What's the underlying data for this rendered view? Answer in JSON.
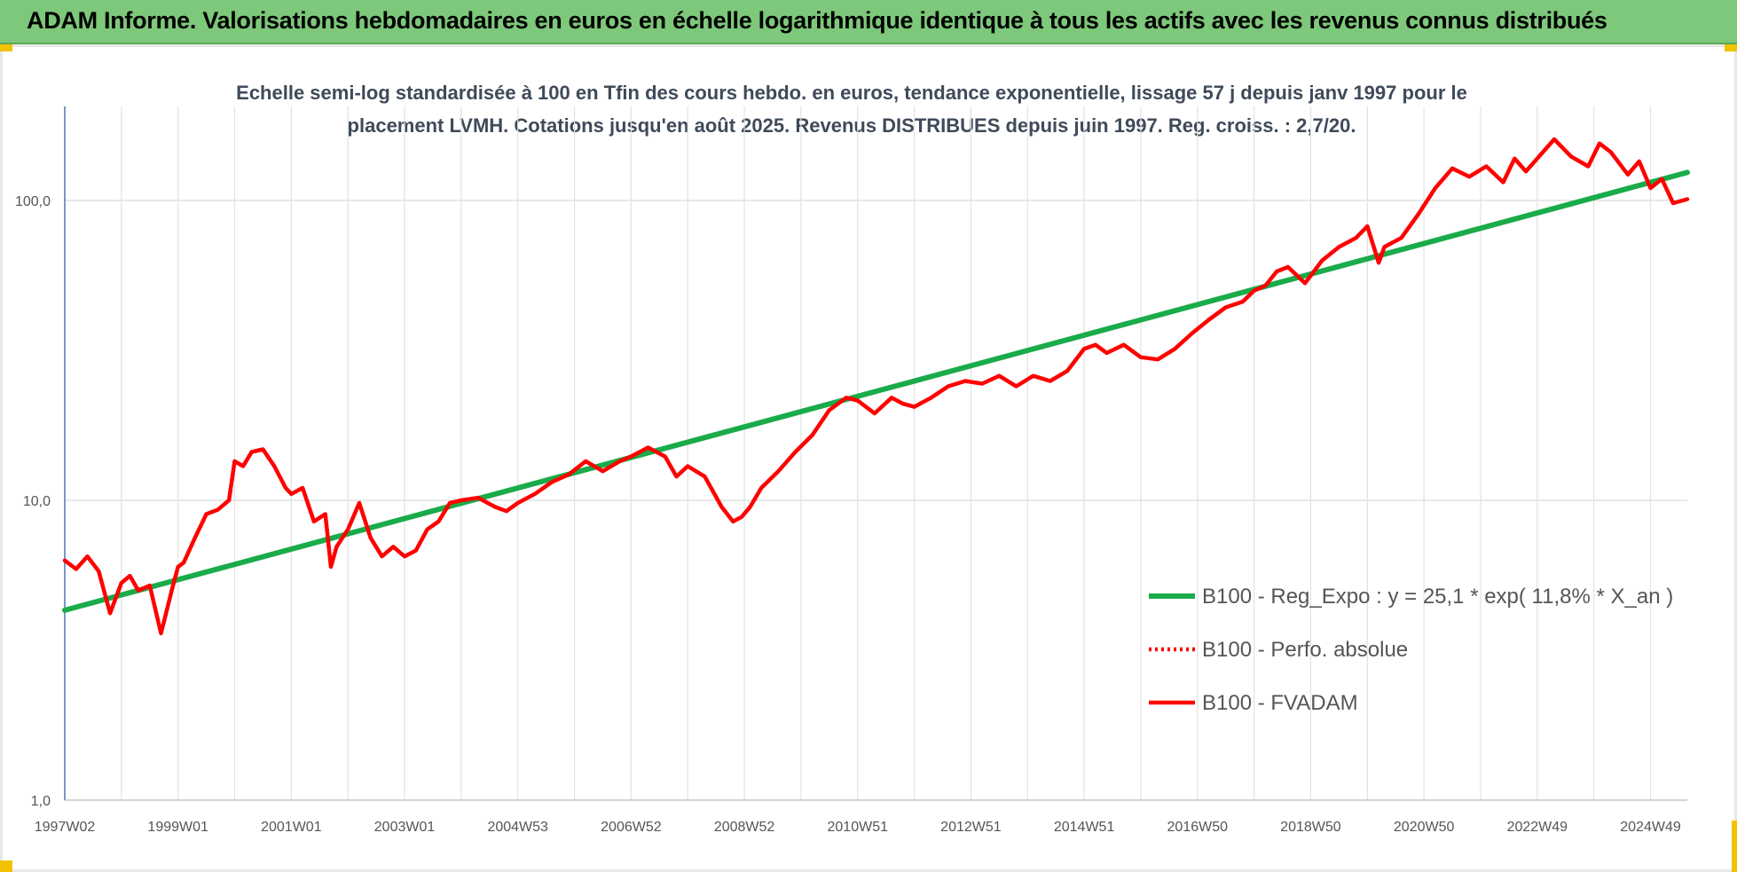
{
  "header": {
    "title": "ADAM Informe. Valorisations hebdomadaires en euros en échelle logarithmique identique à tous les actifs avec les revenus connus distribués"
  },
  "chart_data": {
    "type": "line",
    "title_line1": "Echelle semi-log standardisée à 100 en Tfin des cours hebdo. en euros, tendance exponentielle, lissage 57 j depuis janv 1997 pour le",
    "title_line2": "placement LVMH. Cotations jusqu'en août 2025. Revenus DISTRIBUES depuis juin 1997. Reg. croiss. : 2,7/20.",
    "y_scale": "log",
    "ylim": [
      1,
      200
    ],
    "y_ticks": [
      {
        "value": 1,
        "label": "1,0"
      },
      {
        "value": 10,
        "label": "10,0"
      },
      {
        "value": 100,
        "label": "100,0"
      }
    ],
    "xlim": [
      1997.0,
      2025.65
    ],
    "x_ticks": [
      {
        "value": 1997.0,
        "label": "1997W02"
      },
      {
        "value": 1999.0,
        "label": "1999W01"
      },
      {
        "value": 2001.0,
        "label": "2001W01"
      },
      {
        "value": 2003.0,
        "label": "2003W01"
      },
      {
        "value": 2005.0,
        "label": "2004W53"
      },
      {
        "value": 2007.0,
        "label": "2006W52"
      },
      {
        "value": 2009.0,
        "label": "2008W52"
      },
      {
        "value": 2011.0,
        "label": "2010W51"
      },
      {
        "value": 2013.0,
        "label": "2012W51"
      },
      {
        "value": 2015.0,
        "label": "2014W51"
      },
      {
        "value": 2017.0,
        "label": "2016W50"
      },
      {
        "value": 2019.0,
        "label": "2018W50"
      },
      {
        "value": 2021.0,
        "label": "2020W50"
      },
      {
        "value": 2023.0,
        "label": "2022W49"
      },
      {
        "value": 2025.0,
        "label": "2024W49"
      }
    ],
    "grid": true,
    "legend_position": "right",
    "series": [
      {
        "name": "B100 - Reg_Expo : y = 25,1 * exp( 11,8% *  X_an )",
        "color": "#1aab4a",
        "style": "solid",
        "x": [
          1997.0,
          2025.65
        ],
        "values": [
          4.3,
          124
        ]
      },
      {
        "name": "B100 - Perfo. absolue",
        "color": "#ff0000",
        "style": "dotted",
        "x": [],
        "values": []
      },
      {
        "name": "B100 - FVADAM",
        "color": "#ff0000",
        "style": "solid",
        "x": [
          1997.0,
          1997.2,
          1997.4,
          1997.6,
          1997.8,
          1998.0,
          1998.15,
          1998.3,
          1998.5,
          1998.7,
          1998.9,
          1999.0,
          1999.1,
          1999.3,
          1999.5,
          1999.7,
          1999.9,
          2000.0,
          2000.15,
          2000.3,
          2000.5,
          2000.7,
          2000.9,
          2001.0,
          2001.2,
          2001.4,
          2001.6,
          2001.7,
          2001.8,
          2002.0,
          2002.2,
          2002.4,
          2002.6,
          2002.8,
          2003.0,
          2003.2,
          2003.4,
          2003.6,
          2003.8,
          2004.0,
          2004.3,
          2004.6,
          2004.8,
          2005.0,
          2005.3,
          2005.6,
          2005.9,
          2006.2,
          2006.5,
          2006.8,
          2007.0,
          2007.3,
          2007.6,
          2007.8,
          2008.0,
          2008.3,
          2008.6,
          2008.8,
          2008.95,
          2009.1,
          2009.3,
          2009.6,
          2009.9,
          2010.2,
          2010.5,
          2010.8,
          2011.0,
          2011.3,
          2011.6,
          2011.8,
          2012.0,
          2012.3,
          2012.6,
          2012.9,
          2013.2,
          2013.5,
          2013.8,
          2014.1,
          2014.4,
          2014.7,
          2015.0,
          2015.2,
          2015.4,
          2015.7,
          2016.0,
          2016.3,
          2016.6,
          2016.9,
          2017.2,
          2017.5,
          2017.8,
          2018.0,
          2018.2,
          2018.4,
          2018.6,
          2018.9,
          2019.2,
          2019.5,
          2019.8,
          2020.0,
          2020.2,
          2020.3,
          2020.6,
          2020.9,
          2021.2,
          2021.5,
          2021.8,
          2022.1,
          2022.4,
          2022.6,
          2022.8,
          2023.1,
          2023.3,
          2023.6,
          2023.9,
          2024.1,
          2024.3,
          2024.6,
          2024.8,
          2025.0,
          2025.2,
          2025.4,
          2025.65
        ],
        "values": [
          6.3,
          5.9,
          6.5,
          5.8,
          4.2,
          5.3,
          5.6,
          5.0,
          5.2,
          3.6,
          5.1,
          6.0,
          6.2,
          7.5,
          9.0,
          9.3,
          10.0,
          13.5,
          13.0,
          14.5,
          14.8,
          13.0,
          11.0,
          10.5,
          11.0,
          8.5,
          9.0,
          6.0,
          7.0,
          8.0,
          9.8,
          7.5,
          6.5,
          7.0,
          6.5,
          6.8,
          8.0,
          8.5,
          9.8,
          10.0,
          10.2,
          9.5,
          9.2,
          9.8,
          10.5,
          11.5,
          12.2,
          13.5,
          12.5,
          13.5,
          14.0,
          15.0,
          14.0,
          12.0,
          13.0,
          12.0,
          9.5,
          8.5,
          8.8,
          9.5,
          11.0,
          12.5,
          14.5,
          16.5,
          20.0,
          22.0,
          21.5,
          19.5,
          22.0,
          21.0,
          20.5,
          22.0,
          24.0,
          25.0,
          24.5,
          26.0,
          24.0,
          26.0,
          25.0,
          27.0,
          32.0,
          33.0,
          31.0,
          33.0,
          30.0,
          29.5,
          32.0,
          36.0,
          40.0,
          44.0,
          46.0,
          50.0,
          52.0,
          58.0,
          60.0,
          53.0,
          63.0,
          70.0,
          75.0,
          82.0,
          62.0,
          70.0,
          75.0,
          90.0,
          110.0,
          128.0,
          120.0,
          130.0,
          115.0,
          138.0,
          125.0,
          145.0,
          160.0,
          140.0,
          130.0,
          155.0,
          145.0,
          122.0,
          135.0,
          110.0,
          118.0,
          98.0,
          101.0
        ]
      }
    ]
  }
}
